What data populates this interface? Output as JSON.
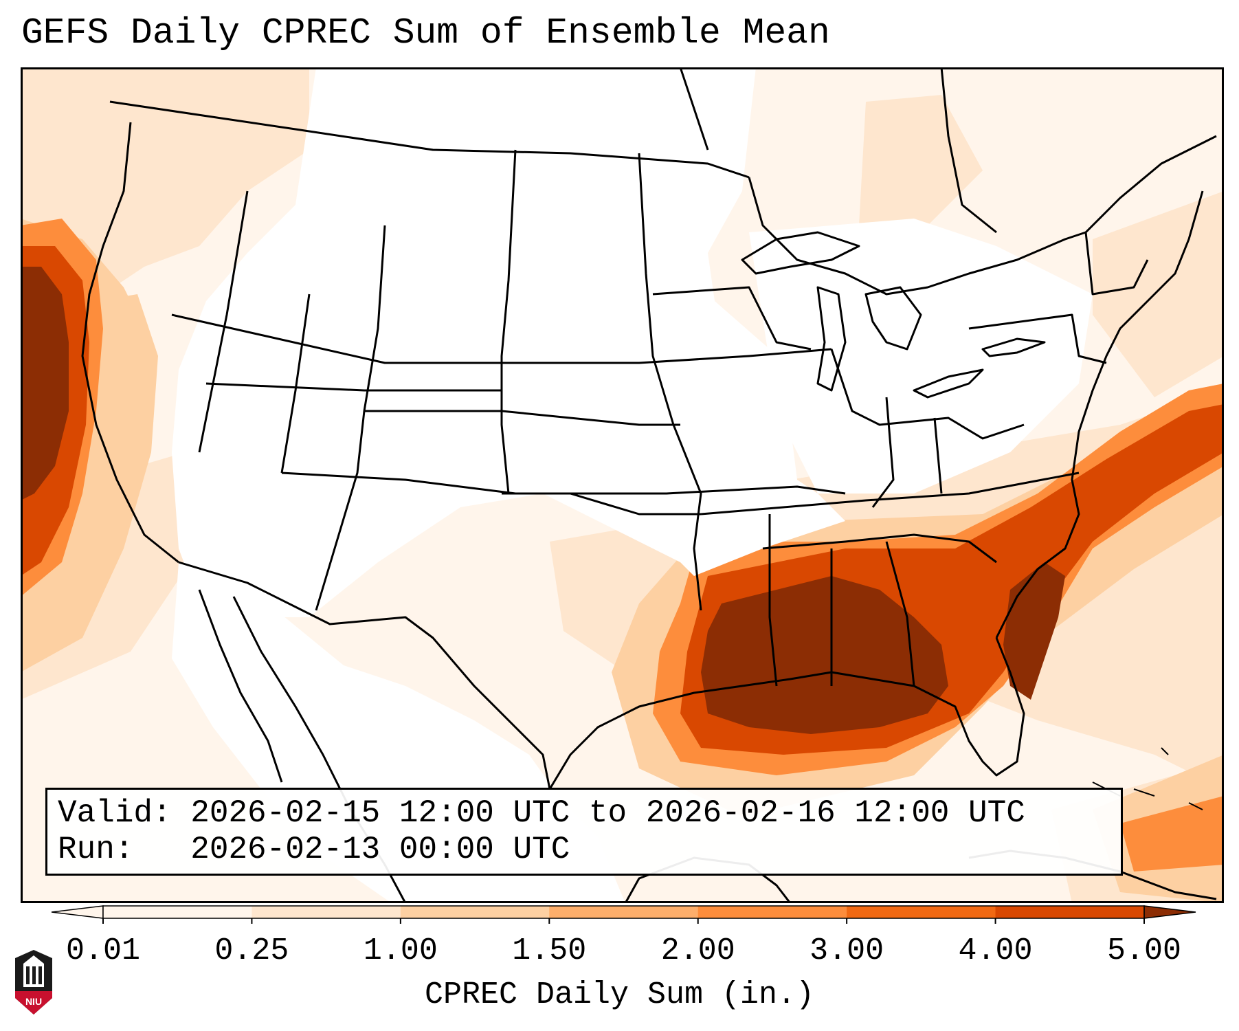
{
  "title": "GEFS Daily CPREC Sum of Ensemble Mean",
  "info": {
    "valid": "Valid: 2026-02-15 12:00 UTC to 2026-02-16 12:00 UTC",
    "run": "Run:   2026-02-13 00:00 UTC"
  },
  "colorbar": {
    "label": "CPREC Daily Sum (in.)",
    "ticks": [
      "0.01",
      "0.25",
      "1.00",
      "1.50",
      "2.00",
      "3.00",
      "4.00",
      "5.00"
    ],
    "colors": [
      "#fff5eb",
      "#fee6ce",
      "#fdd0a2",
      "#fdae6b",
      "#fd8d3c",
      "#f16913",
      "#d94801",
      "#8c2d04"
    ],
    "extend": "both"
  },
  "logo": {
    "text": "NIU"
  },
  "legend_colors": {
    "v001": "#fff5eb",
    "v025": "#fee6ce",
    "v100": "#fdd0a2",
    "v150": "#fdae6b",
    "v200": "#fd8d3c",
    "v300": "#f16913",
    "v400": "#d94801",
    "v500": "#8c2d04"
  }
}
